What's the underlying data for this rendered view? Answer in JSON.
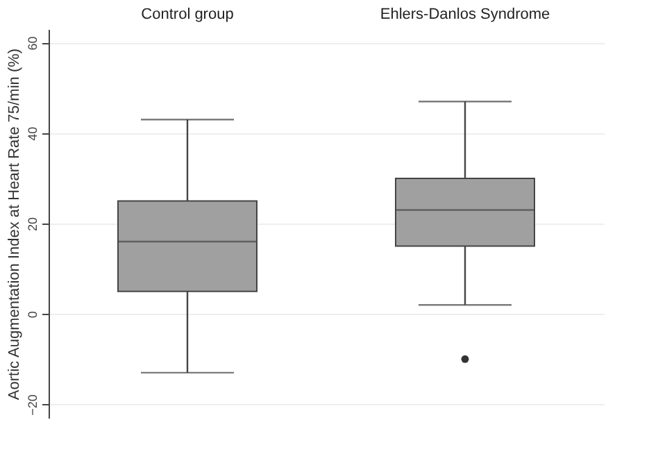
{
  "chart_data": {
    "type": "box",
    "ylabel": "Aortic Augmentation Index at Heart Rate 75/min (%)",
    "categories": [
      "Control group",
      "Ehlers-Danlos Syndrome"
    ],
    "ylim": [
      -23,
      63
    ],
    "yticks": [
      -20,
      0,
      20,
      40,
      60
    ],
    "grid": "y",
    "series": [
      {
        "color": "#a0a0a0",
        "boxes": [
          {
            "low": -13,
            "q1": 5,
            "median": 16,
            "q3": 25,
            "high": 43
          },
          {
            "low": 2,
            "q1": 15,
            "median": 23,
            "q3": 30,
            "high": 47,
            "outliers": [
              -10
            ]
          }
        ]
      }
    ]
  }
}
